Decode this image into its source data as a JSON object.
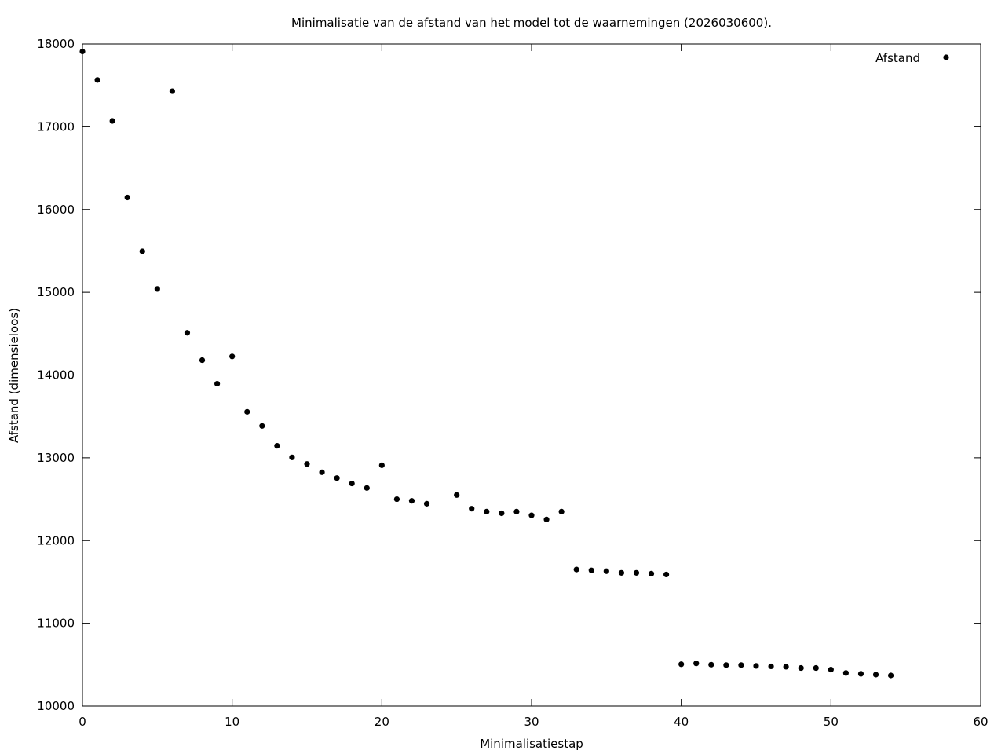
{
  "chart_data": {
    "type": "scatter",
    "title": "Minimalisatie van de afstand van het model tot de waarnemingen (2026030600).",
    "xlabel": "Minimalisatiestap",
    "ylabel": "Afstand (dimensieloos)",
    "xlim": [
      0,
      60
    ],
    "ylim": [
      10000,
      18000
    ],
    "xticks": [
      0,
      10,
      20,
      30,
      40,
      50,
      60
    ],
    "yticks": [
      10000,
      11000,
      12000,
      13000,
      14000,
      15000,
      16000,
      17000,
      18000
    ],
    "xtick_labels": [
      "0",
      "10",
      "20",
      "30",
      "40",
      "50",
      "60"
    ],
    "ytick_labels": [
      "10000",
      "11000",
      "12000",
      "13000",
      "14000",
      "15000",
      "16000",
      "17000",
      "18000"
    ],
    "grid": false,
    "legend_position": "top-right",
    "marker_color": "#000000",
    "series": [
      {
        "name": "Afstand",
        "x": [
          0,
          1,
          2,
          3,
          4,
          5,
          6,
          7,
          8,
          9,
          10,
          11,
          12,
          13,
          14,
          15,
          16,
          17,
          18,
          19,
          20,
          21,
          22,
          23,
          25,
          26,
          27,
          28,
          29,
          30,
          31,
          32,
          33,
          34,
          35,
          36,
          37,
          38,
          39,
          40,
          41,
          42,
          43,
          44,
          45,
          46,
          47,
          48,
          49,
          50,
          51,
          52,
          53,
          54
        ],
        "y": [
          17910,
          17565,
          17070,
          16145,
          15495,
          15040,
          17430,
          14510,
          14180,
          13895,
          14225,
          13555,
          13385,
          13145,
          13005,
          12925,
          12825,
          12755,
          12690,
          12635,
          12910,
          12500,
          12480,
          12445,
          12550,
          12385,
          12350,
          12330,
          12350,
          12305,
          12255,
          12350,
          11650,
          11640,
          11630,
          11610,
          11610,
          11600,
          11590,
          10505,
          10515,
          10500,
          10495,
          10495,
          10485,
          10480,
          10475,
          10460,
          10460,
          10440,
          10400,
          10390,
          10380,
          10370
        ]
      }
    ]
  }
}
